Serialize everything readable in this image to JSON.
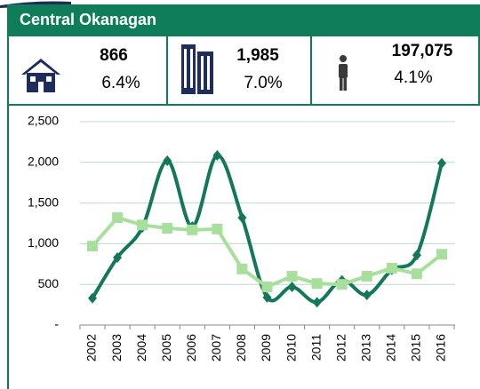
{
  "header": {
    "title": "Central Okanagan"
  },
  "stats": [
    {
      "value": "866",
      "change": "6.4%"
    },
    {
      "value": "1,985",
      "change": "7.0%"
    },
    {
      "value": "197,075",
      "change": "4.1%"
    }
  ],
  "chart_data": {
    "type": "line",
    "categories": [
      "2002",
      "2003",
      "2004",
      "2005",
      "2006",
      "2007",
      "2008",
      "2009",
      "2010",
      "2011",
      "2012",
      "2013",
      "2014",
      "2015",
      "2016"
    ],
    "series": [
      {
        "color": "#13785a",
        "marker": "diamond",
        "smooth": true,
        "values": [
          330,
          830,
          1200,
          2020,
          1210,
          2085,
          1320,
          340,
          470,
          280,
          550,
          370,
          680,
          860,
          1990
        ]
      },
      {
        "color": "#a9df9c",
        "marker": "square",
        "smooth": false,
        "values": [
          970,
          1320,
          1230,
          1190,
          1170,
          1180,
          690,
          470,
          600,
          510,
          500,
          600,
          700,
          630,
          870
        ]
      }
    ],
    "ylim": [
      0,
      2500
    ],
    "yticks": [
      {
        "value": 0,
        "label": "-"
      },
      500,
      {
        "value": 1000,
        "label": "1,000"
      },
      {
        "value": 1500,
        "label": "1,500"
      },
      {
        "value": 2000,
        "label": "2,000"
      },
      {
        "value": 2500,
        "label": "2,500"
      }
    ],
    "grid": true
  }
}
